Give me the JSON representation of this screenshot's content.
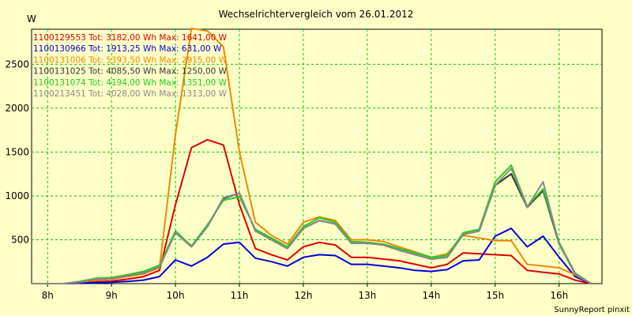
{
  "chart_data": {
    "type": "line",
    "title": "Wechselrichtervergleich vom 26.01.2012",
    "ylabel": "W",
    "xlabel": "",
    "credit": "SunnyReport pinxit",
    "grid": true,
    "legend_position": "top-left",
    "xlim": [
      7.75,
      16.67
    ],
    "ylim": [
      0,
      2900
    ],
    "x_ticks": [
      {
        "value": 8,
        "label": "8h"
      },
      {
        "value": 9,
        "label": "9h"
      },
      {
        "value": 10,
        "label": "10h"
      },
      {
        "value": 11,
        "label": "11h"
      },
      {
        "value": 12,
        "label": "12h"
      },
      {
        "value": 13,
        "label": "13h"
      },
      {
        "value": 14,
        "label": "14h"
      },
      {
        "value": 15,
        "label": "15h"
      },
      {
        "value": 16,
        "label": "16h"
      }
    ],
    "y_ticks": [
      {
        "value": 500,
        "label": "500"
      },
      {
        "value": 1000,
        "label": "1000"
      },
      {
        "value": 1500,
        "label": "1500"
      },
      {
        "value": 2000,
        "label": "2000"
      },
      {
        "value": 2500,
        "label": "2500"
      }
    ],
    "x": [
      7.75,
      8.0,
      8.25,
      8.5,
      8.75,
      9.0,
      9.25,
      9.5,
      9.75,
      10.0,
      10.25,
      10.5,
      10.75,
      11.0,
      11.25,
      11.5,
      11.75,
      12.0,
      12.25,
      12.5,
      12.75,
      13.0,
      13.25,
      13.5,
      13.75,
      14.0,
      14.25,
      14.5,
      14.75,
      15.0,
      15.25,
      15.5,
      15.75,
      16.0,
      16.25,
      16.5
    ],
    "series": [
      {
        "name": "1100129553 Tot: 3182,00 Wh Max: 1641,00 W",
        "color": "#dd0000",
        "values": [
          0,
          0,
          0,
          5,
          20,
          30,
          50,
          80,
          150,
          900,
          1550,
          1640,
          1580,
          900,
          400,
          330,
          270,
          420,
          470,
          440,
          300,
          300,
          280,
          260,
          220,
          180,
          220,
          350,
          340,
          330,
          320,
          150,
          130,
          110,
          40,
          0
        ]
      },
      {
        "name": "1100130966 Tot: 1913,25 Wh Max: 631,00 W",
        "color": "#0000dd",
        "values": [
          0,
          0,
          0,
          5,
          10,
          15,
          25,
          40,
          80,
          270,
          200,
          300,
          450,
          470,
          290,
          250,
          200,
          300,
          330,
          320,
          220,
          220,
          200,
          180,
          150,
          140,
          160,
          260,
          270,
          540,
          630,
          420,
          540,
          300,
          80,
          0
        ]
      },
      {
        "name": "1100131006 Tot: 5393,50 Wh Max: 2915,00 W",
        "color": "#ee8800",
        "values": [
          0,
          0,
          0,
          15,
          40,
          50,
          80,
          110,
          180,
          1700,
          2910,
          2880,
          2700,
          1500,
          700,
          550,
          450,
          700,
          760,
          720,
          500,
          500,
          480,
          420,
          360,
          300,
          340,
          550,
          520,
          490,
          490,
          220,
          200,
          180,
          100,
          0
        ]
      },
      {
        "name": "1100131025 Tot: 4085,50 Wh Max: 1250,00 W",
        "color": "#333333",
        "values": [
          0,
          0,
          0,
          20,
          50,
          60,
          90,
          120,
          190,
          580,
          420,
          650,
          970,
          1030,
          600,
          500,
          400,
          630,
          720,
          680,
          460,
          460,
          440,
          380,
          330,
          280,
          300,
          560,
          600,
          1120,
          1250,
          870,
          1060,
          450,
          110,
          0
        ]
      },
      {
        "name": "1100131074 Tot: 4194,00 Wh Max: 1351,00 W",
        "color": "#22cc22",
        "values": [
          0,
          0,
          0,
          25,
          60,
          70,
          100,
          140,
          210,
          600,
          430,
          670,
          950,
          990,
          620,
          520,
          420,
          650,
          750,
          700,
          480,
          470,
          450,
          400,
          350,
          300,
          320,
          580,
          620,
          1160,
          1350,
          880,
          1080,
          470,
          120,
          0
        ]
      },
      {
        "name": "1100213451 Tot: 4028,00 Wh Max: 1313,00 W",
        "color": "#888888",
        "values": [
          0,
          0,
          0,
          20,
          50,
          60,
          90,
          120,
          190,
          580,
          420,
          650,
          980,
          1030,
          600,
          500,
          400,
          630,
          720,
          680,
          460,
          460,
          440,
          380,
          330,
          280,
          300,
          560,
          600,
          1120,
          1313,
          870,
          1160,
          450,
          110,
          0
        ]
      }
    ]
  }
}
